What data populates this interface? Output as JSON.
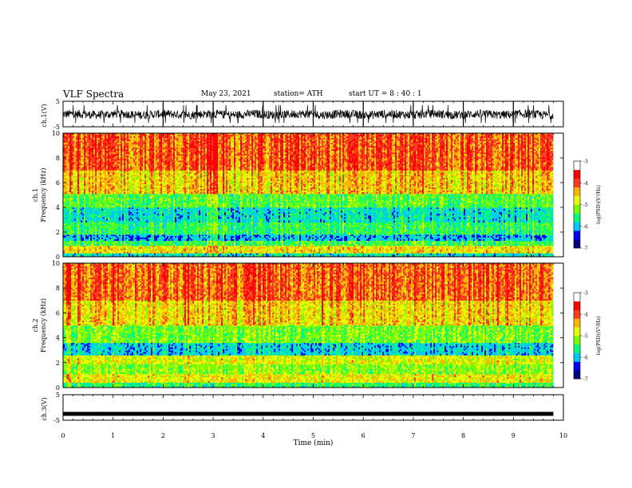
{
  "header": {
    "title": "VLF Spectra",
    "date": "May 23, 2021",
    "station": "station= ATH",
    "start": "start  UT =   8 : 40 : 1"
  },
  "colors": {
    "spectrogram_scale": [
      "#000080",
      "#0000ff",
      "#00c8ff",
      "#00ff78",
      "#78ff00",
      "#e6ff00",
      "#ffb400",
      "#ff3c1e",
      "#ff0000",
      "#ffffff"
    ],
    "trace": "#000000"
  },
  "chart_data": [
    {
      "type": "line",
      "panel": "ch1-waveform",
      "ylabel": "ch.1(V)",
      "ylim": [
        -5,
        5
      ],
      "yticks": [
        "5",
        "-5"
      ],
      "xlim": [
        0,
        10
      ],
      "approx_amplitude_range": [
        -1.2,
        0.9
      ],
      "gaps_at_min": [
        2,
        3,
        4,
        5,
        6,
        7,
        8,
        9
      ]
    },
    {
      "type": "heatmap",
      "panel": "ch1-spectrogram",
      "ylabel_top": "ch.1",
      "ylabel": "Frequency (kHz)",
      "ylim": [
        0,
        10
      ],
      "yticks": [
        "0",
        "2",
        "4",
        "6",
        "8",
        "10"
      ],
      "xlim": [
        0,
        9.8
      ],
      "colorbar": {
        "label": "log(PSD)(V²/Hz)",
        "range": [
          -7,
          -3
        ],
        "ticks": [
          "-3",
          "-4",
          "-5",
          "-6",
          "-7"
        ]
      },
      "bands_khz": [
        {
          "from": 0.0,
          "to": 0.3,
          "level": -5.8
        },
        {
          "from": 0.3,
          "to": 0.9,
          "level": -4.3
        },
        {
          "from": 0.9,
          "to": 1.3,
          "level": -5.3
        },
        {
          "from": 1.3,
          "to": 1.8,
          "level": -6.1
        },
        {
          "from": 1.8,
          "to": 2.8,
          "level": -5.4
        },
        {
          "from": 2.8,
          "to": 4.0,
          "level": -5.8
        },
        {
          "from": 4.0,
          "to": 5.1,
          "level": -5.2
        },
        {
          "from": 5.1,
          "to": 7.0,
          "level": -4.2
        },
        {
          "from": 7.0,
          "to": 10.0,
          "level": -3.6
        }
      ]
    },
    {
      "type": "heatmap",
      "panel": "ch2-spectrogram",
      "ylabel_top": "ch.2",
      "ylabel": "Frequency (kHz)",
      "ylim": [
        0,
        10
      ],
      "yticks": [
        "0",
        "2",
        "4",
        "6",
        "8",
        "10"
      ],
      "xlim": [
        0,
        9.8
      ],
      "colorbar": {
        "label": "log(PSD)(V²/Hz)",
        "range": [
          -7,
          -3
        ],
        "ticks": [
          "-3",
          "-4",
          "-5",
          "-6",
          "-7"
        ]
      },
      "bands_khz": [
        {
          "from": 0.0,
          "to": 0.4,
          "level": -5.4
        },
        {
          "from": 0.4,
          "to": 1.1,
          "level": -4.4
        },
        {
          "from": 1.1,
          "to": 1.9,
          "level": -4.9
        },
        {
          "from": 1.9,
          "to": 2.6,
          "level": -4.5
        },
        {
          "from": 2.6,
          "to": 3.6,
          "level": -5.9
        },
        {
          "from": 3.6,
          "to": 5.0,
          "level": -5.0
        },
        {
          "from": 5.0,
          "to": 7.0,
          "level": -4.2
        },
        {
          "from": 7.0,
          "to": 10.0,
          "level": -3.6
        }
      ]
    },
    {
      "type": "line",
      "panel": "ch3-waveform",
      "ylabel": "ch.3(V)",
      "ylim": [
        -5,
        5
      ],
      "yticks": [
        "5",
        "-5"
      ],
      "xlim": [
        0,
        9.8
      ],
      "approx_value": -2.5,
      "xlabel": "Time (min)",
      "xticks": [
        "0",
        "1",
        "2",
        "3",
        "4",
        "5",
        "6",
        "7",
        "8",
        "9",
        "10"
      ]
    }
  ]
}
